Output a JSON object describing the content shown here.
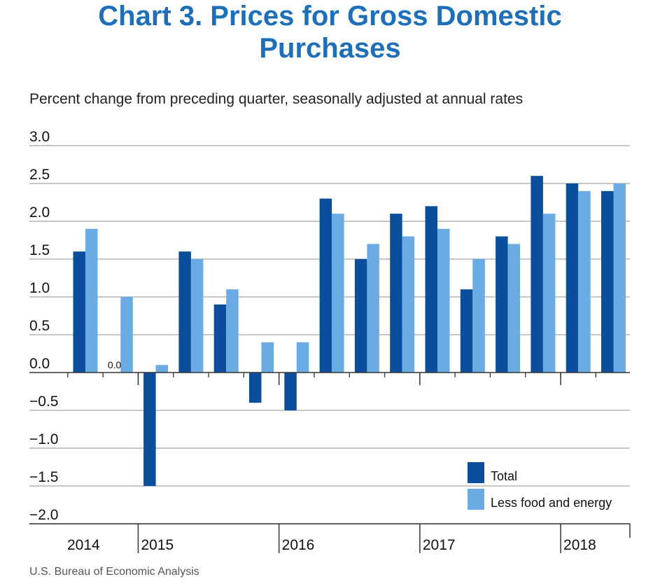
{
  "title_lines": [
    "Chart 3. Prices for Gross Domestic",
    "Purchases"
  ],
  "subtitle": "Percent change from preceding quarter, seasonally adjusted at annual rates",
  "source": "U.S. Bureau of Economic Analysis",
  "colors": {
    "title": "#1f6fb8",
    "total": "#0b4f9c",
    "less_food_energy": "#6aabe4",
    "grid": "#a6a6a6",
    "axis": "#333333"
  },
  "chart_data": {
    "type": "bar",
    "title": "Chart 3. Prices for Gross Domestic Purchases",
    "ylabel": "Percent change from preceding quarter, seasonally adjusted at annual rates",
    "ylim": [
      -2.0,
      3.0
    ],
    "yticks": [
      3.0,
      2.5,
      2.0,
      1.5,
      1.0,
      0.5,
      0.0,
      -0.5,
      -1.0,
      -1.5,
      -2.0
    ],
    "ytick_labels": [
      "3.0",
      "2.5",
      "2.0",
      "1.5",
      "1.0",
      "0.5",
      "0.0",
      "−0.5",
      "−1.0",
      "−1.5",
      "−2.0"
    ],
    "grid": true,
    "legend_position": "bottom-right",
    "categories": [
      "2014 Q3",
      "2014 Q4",
      "2015 Q1",
      "2015 Q2",
      "2015 Q3",
      "2015 Q4",
      "2016 Q1",
      "2016 Q2",
      "2016 Q3",
      "2016 Q4",
      "2017 Q1",
      "2017 Q2",
      "2017 Q3",
      "2017 Q4",
      "2018 Q1",
      "2018 Q2"
    ],
    "year_groups": [
      {
        "label": "2014",
        "count": 2
      },
      {
        "label": "2015",
        "count": 4
      },
      {
        "label": "2016",
        "count": 4
      },
      {
        "label": "2017",
        "count": 4
      },
      {
        "label": "2018",
        "count": 2
      }
    ],
    "series": [
      {
        "name": "Total",
        "values": [
          1.6,
          0.0,
          -1.5,
          1.6,
          0.9,
          -0.4,
          -0.5,
          2.3,
          1.5,
          2.1,
          2.2,
          1.1,
          1.8,
          2.6,
          2.5,
          2.4
        ]
      },
      {
        "name": "Less food and energy",
        "values": [
          1.9,
          1.0,
          0.1,
          1.5,
          1.1,
          0.4,
          0.4,
          2.1,
          1.7,
          1.8,
          1.9,
          1.5,
          1.7,
          2.1,
          2.4,
          2.5
        ]
      }
    ],
    "annotations": [
      {
        "category": "2014 Q4",
        "series": "Total",
        "text": "0.0"
      }
    ]
  }
}
